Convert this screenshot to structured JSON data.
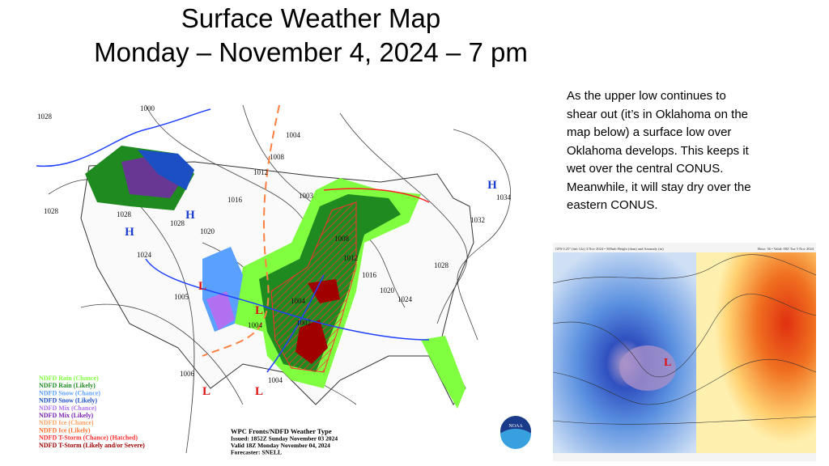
{
  "title": [
    "Surface Weather Map",
    "Monday – November 4, 2024 – 7 pm"
  ],
  "description": [
    "As the upper low continues to",
    "shear out (it’s in Oklahoma on the",
    "map below) a surface low over",
    "Oklahoma develops.  This keeps it",
    "wet over the central CONUS.",
    "Meanwhile, it will stay dry over the",
    "eastern CONUS."
  ],
  "map": {
    "isobars": [
      "1000",
      "1028",
      "1028",
      "1028",
      "1028",
      "1020",
      "1024",
      "1016",
      "1012",
      "1008",
      "1004",
      "1003",
      "1008",
      "1012",
      "1016",
      "1020",
      "1024",
      "1028",
      "1032",
      "1034",
      "1004",
      "1002",
      "1004",
      "1005",
      "1006",
      "1004"
    ],
    "highs": [
      "H",
      "H",
      "H"
    ],
    "lows": [
      "L",
      "L",
      "L",
      "L"
    ],
    "legend": [
      {
        "label": "NDFD Rain (Chance)",
        "color": "#80ff40"
      },
      {
        "label": "NDFD Rain (Likely)",
        "color": "#1f8a1f"
      },
      {
        "label": "NDFD Snow (Chance)",
        "color": "#5aa0ff"
      },
      {
        "label": "NDFD Snow (Likely)",
        "color": "#1c4fc4"
      },
      {
        "label": "NDFD Mix (Chance)",
        "color": "#b070f0"
      },
      {
        "label": "NDFD Mix (Likely)",
        "color": "#7a20b0"
      },
      {
        "label": "NDFD Ice (Chance)",
        "color": "#ffa060"
      },
      {
        "label": "NDFD Ice (Likely)",
        "color": "#ff7030"
      },
      {
        "label": "NDFD T-Storm (Chance) (Hatched)",
        "color": "#ff3030"
      },
      {
        "label": "NDFD T-Storm (Likely and/or Severe)",
        "color": "#a00000"
      }
    ],
    "info": [
      "WPC Fronts/NDFD Weather Type",
      "Issued: 1852Z Sunday November 03 2024",
      "Valid 18Z Monday November 04, 2024",
      "Forecaster: SNELL"
    ],
    "logo": "NOAA"
  },
  "inset": {
    "header_left": "GFS 0.25° (init 12z) 3 Nov 2024 • 500mb Height (dam) and Anomaly (m)",
    "header_right": "Hour: 36 • Valid: 00Z Tue 5 Nov 2024",
    "low": "L"
  }
}
